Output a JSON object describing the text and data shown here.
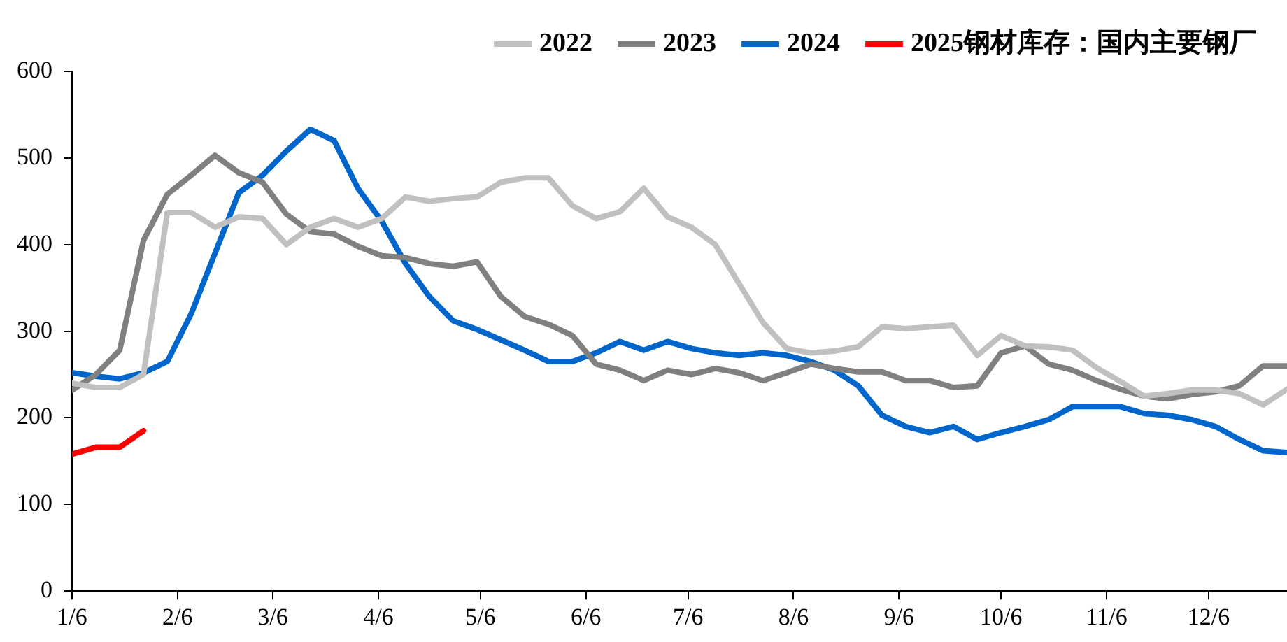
{
  "chart_data": {
    "type": "line",
    "legend": "top",
    "grid": false,
    "marker": "none",
    "line_style": "solid",
    "x": [
      "--01-06",
      "--01-13",
      "--01-20",
      "--01-27",
      "--02-03",
      "--02-10",
      "--02-17",
      "--02-24",
      "--03-03",
      "--03-10",
      "--03-17",
      "--03-24",
      "--03-31",
      "--04-07",
      "--04-14",
      "--04-21",
      "--04-28",
      "--05-05",
      "--05-12",
      "--05-19",
      "--05-26",
      "--06-02",
      "--06-09",
      "--06-16",
      "--06-23",
      "--06-30",
      "--07-07",
      "--07-14",
      "--07-21",
      "--07-28",
      "--08-04",
      "--08-11",
      "--08-18",
      "--08-25",
      "--09-01",
      "--09-08",
      "--09-15",
      "--09-22",
      "--09-29",
      "--10-06",
      "--10-13",
      "--10-20",
      "--10-27",
      "--11-03",
      "--11-10",
      "--11-17",
      "--11-24",
      "--12-01",
      "--12-08",
      "--12-15",
      "--12-22",
      "--12-29"
    ],
    "xlim": [
      "--01-06",
      "--12-29"
    ],
    "xticks": [
      {
        "value": "--01-06",
        "label": "1/6"
      },
      {
        "value": "--02-06",
        "label": "2/6"
      },
      {
        "value": "--03-06",
        "label": "3/6"
      },
      {
        "value": "--04-06",
        "label": "4/6"
      },
      {
        "value": "--05-06",
        "label": "5/6"
      },
      {
        "value": "--06-06",
        "label": "6/6"
      },
      {
        "value": "--07-06",
        "label": "7/6"
      },
      {
        "value": "--08-06",
        "label": "8/6"
      },
      {
        "value": "--09-06",
        "label": "9/6"
      },
      {
        "value": "--10-06",
        "label": "10/6"
      },
      {
        "value": "--11-06",
        "label": "11/6"
      },
      {
        "value": "--12-06",
        "label": "12/6"
      }
    ],
    "ylim": [
      0,
      600
    ],
    "yticks": [
      0,
      100,
      200,
      300,
      400,
      500,
      600
    ],
    "series": [
      {
        "name": "2022",
        "color": "#c0c0c0",
        "values": [
          240,
          235,
          235,
          250,
          437,
          437,
          420,
          432,
          430,
          400,
          420,
          430,
          420,
          430,
          455,
          450,
          453,
          455,
          472,
          477,
          477,
          445,
          430,
          438,
          465,
          432,
          420,
          400,
          355,
          310,
          280,
          275,
          277,
          282,
          305,
          303,
          305,
          307,
          272,
          295,
          283,
          282,
          278,
          258,
          242,
          225,
          228,
          232,
          232,
          228,
          215,
          233
        ]
      },
      {
        "name": "2023",
        "color": "#808080",
        "values": [
          232,
          250,
          278,
          405,
          458,
          480,
          503,
          483,
          472,
          435,
          415,
          412,
          398,
          387,
          385,
          378,
          375,
          380,
          340,
          317,
          308,
          295,
          262,
          255,
          243,
          255,
          250,
          257,
          252,
          243,
          252,
          262,
          257,
          253,
          253,
          243,
          243,
          235,
          237,
          275,
          283,
          262,
          255,
          243,
          233,
          225,
          222,
          227,
          230,
          237,
          260,
          260
        ]
      },
      {
        "name": "2024",
        "color": "#0066cc",
        "values": [
          252,
          248,
          245,
          252,
          265,
          320,
          390,
          460,
          480,
          508,
          533,
          520,
          465,
          427,
          378,
          340,
          312,
          302,
          290,
          278,
          265,
          265,
          275,
          288,
          278,
          288,
          280,
          275,
          272,
          275,
          272,
          265,
          255,
          237,
          203,
          190,
          183,
          190,
          175,
          183,
          190,
          198,
          213,
          213,
          213,
          205,
          203,
          198,
          190,
          175,
          162,
          160
        ]
      },
      {
        "name": "2025钢材库存：国内主要钢厂",
        "color": "#ff0000",
        "x": [
          "--01-06",
          "--01-13",
          "--01-20",
          "--01-27"
        ],
        "values": [
          158,
          166,
          166,
          185
        ]
      }
    ]
  }
}
